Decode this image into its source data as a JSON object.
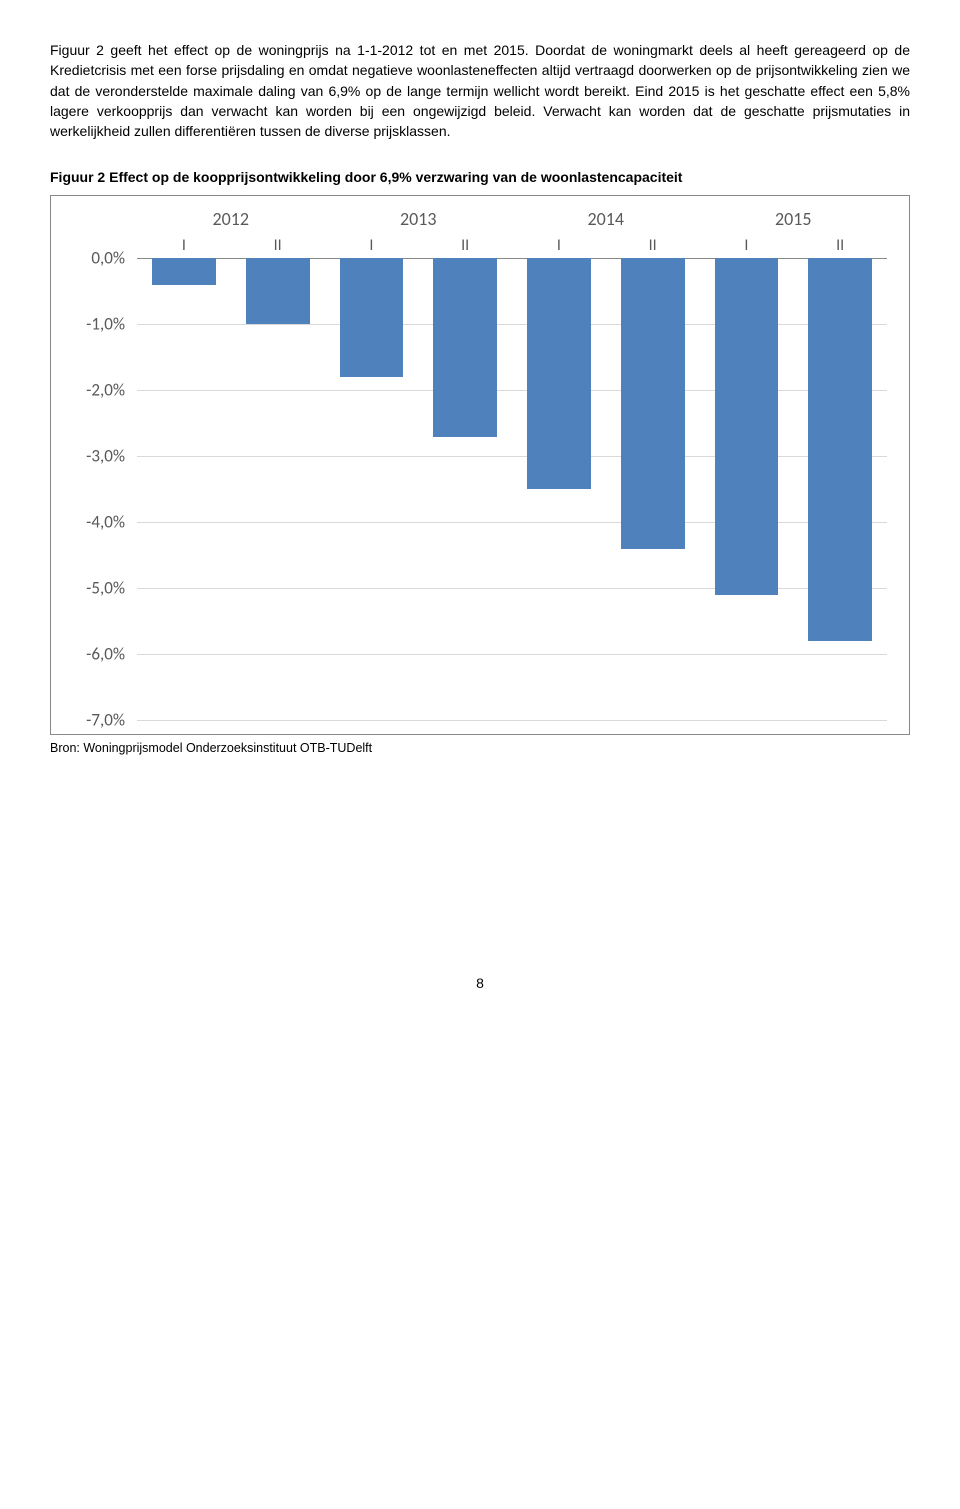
{
  "paragraph": "Figuur 2 geeft het effect op de woningprijs na 1-1-2012 tot en met 2015. Doordat de woningmarkt deels al heeft gereageerd op de Kredietcrisis met een forse prijsdaling en omdat negatieve woonlasteneffecten altijd vertraagd doorwerken op de prijsontwikkeling zien we dat de veronderstelde maximale daling van 6,9% op de lange termijn wellicht wordt bereikt. Eind 2015 is het geschatte effect een 5,8% lagere verkoopprijs dan verwacht kan worden bij een ongewijzigd beleid. Verwacht kan worden dat de geschatte prijsmutaties in werkelijkheid zullen differentiëren tussen de diverse prijsklassen.",
  "fig_title": "Figuur 2  Effect op de koopprijsontwikkeling door 6,9% verzwaring van de woonlastencapaciteit",
  "chart": {
    "type": "bar",
    "years": [
      "2012",
      "2013",
      "2014",
      "2015"
    ],
    "sub_labels": [
      "I",
      "II",
      "I",
      "II",
      "I",
      "II",
      "I",
      "II"
    ],
    "values": [
      -0.4,
      -1.0,
      -1.8,
      -2.7,
      -3.5,
      -4.4,
      -5.1,
      -5.8
    ],
    "ylim_min": -7.0,
    "ylim_max": 0.0,
    "ytick_step": 1.0,
    "yticks": [
      "0,0%",
      "-1,0%",
      "-2,0%",
      "-3,0%",
      "-4,0%",
      "-5,0%",
      "-6,0%",
      "-7,0%"
    ],
    "bar_color": "#4f81bd",
    "grid_color": "#d9d9d9",
    "axis_text_color": "#595959",
    "background_color": "#ffffff",
    "year_fontsize": 18,
    "tick_fontsize": 17
  },
  "source": "Bron: Woningprijsmodel Onderzoeksinstituut OTB-TUDelft",
  "page_number": "8"
}
